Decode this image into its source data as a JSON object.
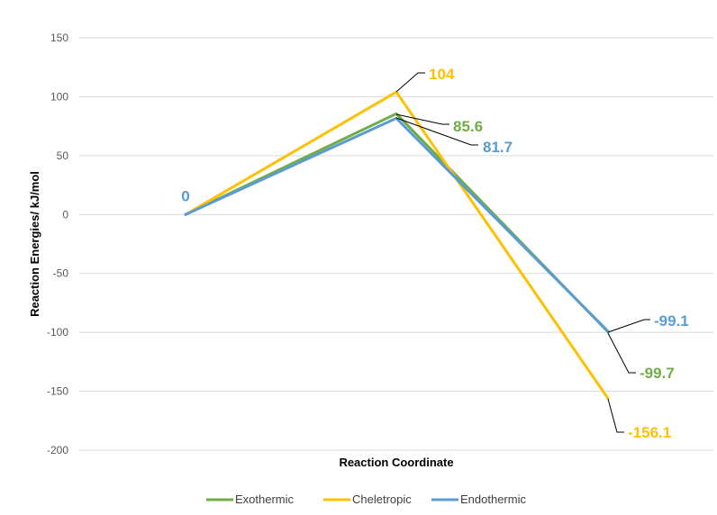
{
  "chart_data": {
    "type": "line",
    "xlabel": "Reaction Coordinate",
    "ylabel": "Reaction Energies/ kJ/mol",
    "ylim": [
      -200,
      150
    ],
    "yticks": [
      150,
      100,
      50,
      0,
      -50,
      -100,
      -150,
      -200
    ],
    "grid": true,
    "legend_position": "bottom",
    "points": 3,
    "series": [
      {
        "name": "Exothermic",
        "color": "#70AD47",
        "values": [
          0,
          85.6,
          -99.7
        ]
      },
      {
        "name": "Cheletropic",
        "color": "#FFC000",
        "values": [
          0,
          104,
          -156.1
        ]
      },
      {
        "name": "Endothermic",
        "color": "#5B9BD5",
        "values": [
          0,
          81.7,
          -99.1
        ]
      }
    ],
    "data_labels": [
      {
        "text": "0",
        "series": "Endothermic",
        "point": 0
      },
      {
        "text": "104",
        "series": "Cheletropic",
        "point": 1
      },
      {
        "text": "85.6",
        "series": "Exothermic",
        "point": 1
      },
      {
        "text": "81.7",
        "series": "Endothermic",
        "point": 1
      },
      {
        "text": "-99.1",
        "series": "Endothermic",
        "point": 2
      },
      {
        "text": "-99.7",
        "series": "Exothermic",
        "point": 2
      },
      {
        "text": "-156.1",
        "series": "Cheletropic",
        "point": 2
      }
    ]
  }
}
